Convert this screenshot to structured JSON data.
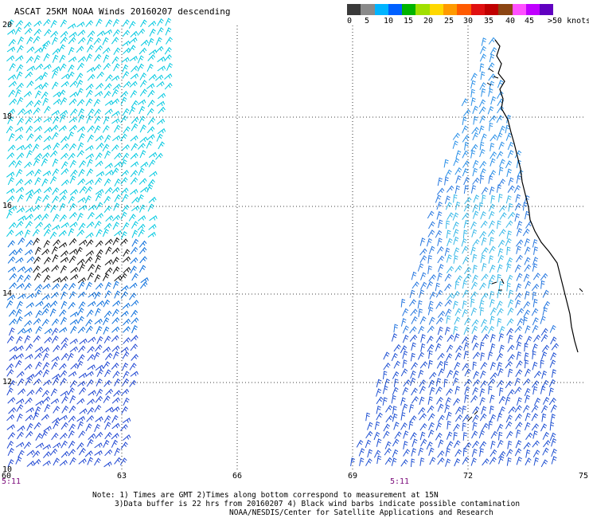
{
  "title": "ASCAT 25KM NOAA Winds 20160207 descending",
  "legend": {
    "labels": [
      "0",
      "5",
      "10",
      "15",
      "20",
      "25",
      "30",
      "35",
      "40",
      "45",
      ">50 knots"
    ],
    "colors": [
      "#3a3a3a",
      "#8a8a8a",
      "#00b4ff",
      "#0060ff",
      "#00b400",
      "#a0e000",
      "#ffd800",
      "#ff9a00",
      "#ff5a00",
      "#e01010",
      "#c00000",
      "#8b4513",
      "#ff50ff",
      "#c000ff",
      "#6000c0"
    ]
  },
  "map": {
    "lat_labels": [
      "20",
      "18",
      "16",
      "14",
      "12",
      "10"
    ],
    "lon_labels": [
      "60",
      "63",
      "66",
      "69",
      "72",
      "75"
    ],
    "time_labels": [
      "5:11",
      "5:11"
    ]
  },
  "notes": {
    "line1": "Note: 1) Times are GMT 2)Times along bottom correspond to measurement at 15N",
    "line2": "3)Data buffer is 22 hrs from 20160207 4) Black wind barbs indicate possible contamination",
    "line3": "NOAA/NESDIS/Center for Satellite Applications and Research"
  }
}
